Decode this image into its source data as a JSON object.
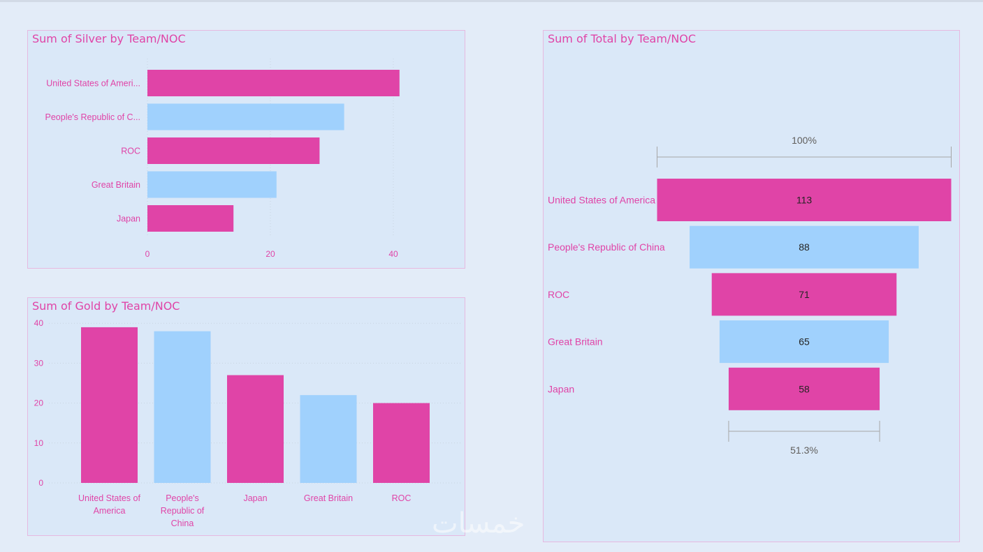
{
  "colors": {
    "pink": "#e044a7",
    "light_blue": "#a0d1fd",
    "panel_bg": "#dae8f8",
    "page_bg": "#e3ecf8",
    "border": "#e6b9e0"
  },
  "silver_chart": {
    "title": "Sum of Silver by Team/NOC",
    "chart_data": {
      "type": "bar",
      "orientation": "horizontal",
      "categories": [
        "United States of Ameri...",
        "People's Republic of C...",
        "ROC",
        "Great Britain",
        "Japan"
      ],
      "values": [
        41,
        32,
        28,
        21,
        14
      ],
      "xticks": [
        "0",
        "20",
        "40"
      ],
      "xlim": [
        0,
        50
      ],
      "grid": true
    }
  },
  "gold_chart": {
    "title": "Sum of Gold by Team/NOC",
    "chart_data": {
      "type": "bar",
      "orientation": "vertical",
      "categories": [
        [
          "United States of",
          "America"
        ],
        [
          "People's",
          "Republic of",
          "China"
        ],
        [
          "Japan"
        ],
        [
          "Great Britain"
        ],
        [
          "ROC"
        ]
      ],
      "values": [
        39,
        38,
        27,
        22,
        20
      ],
      "yticks": [
        "0",
        "10",
        "20",
        "30",
        "40"
      ],
      "ylim": [
        0,
        40
      ],
      "grid": true
    }
  },
  "total_chart": {
    "title": "Sum of Total by Team/NOC",
    "top_percent": "100%",
    "bottom_percent": "51.3%",
    "chart_data": {
      "type": "funnel",
      "categories": [
        "United States of America",
        "People's Republic of China",
        "ROC",
        "Great Britain",
        "Japan"
      ],
      "values": [
        113,
        88,
        71,
        65,
        58
      ]
    }
  },
  "watermark": "خمسات"
}
